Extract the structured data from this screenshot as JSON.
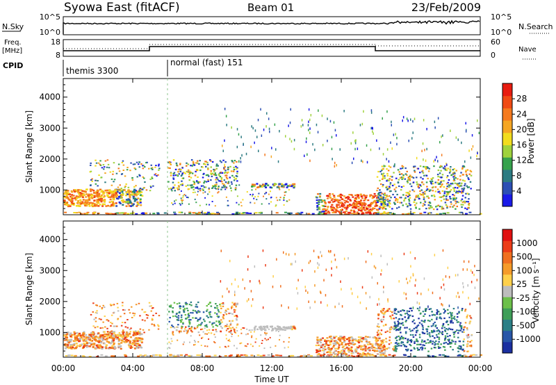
{
  "header": {
    "title": "Syowa East (fitACF)",
    "beam": "Beam 01",
    "date": "23/Feb/2009"
  },
  "sky_panel": {
    "left_label": "N.Sky",
    "right_label": "N.Search",
    "left_ticks": [
      "10^5",
      "10^0"
    ],
    "right_ticks": [
      "10^5",
      "10^0"
    ]
  },
  "freq_panel": {
    "left_label": "Freq.",
    "left_unit": "[MHz]",
    "right_label": "Nave",
    "left_ticks": [
      "18",
      "8"
    ],
    "right_ticks": [
      "60",
      "0"
    ]
  },
  "cpid": {
    "label": "CPID",
    "modes": [
      {
        "name": "themis 3300",
        "start_hour": 0
      },
      {
        "name": "normal (fast) 151",
        "start_hour": 6
      }
    ]
  },
  "chart_data": [
    {
      "type": "heatmap",
      "name": "power-panel",
      "ylabel": "Slant Range [km]",
      "ylim": [
        200,
        4600
      ],
      "yticks": [
        1000,
        2000,
        3000,
        4000
      ],
      "xlim": [
        0,
        24
      ],
      "colorbar_label": "Power [dB]",
      "colorbar_ticks": [
        "28",
        "24",
        "20",
        "16",
        "12",
        "8",
        "4"
      ],
      "colors": [
        "#1a1ae8",
        "#2c4fb4",
        "#2c7b82",
        "#36a24c",
        "#9fd23c",
        "#f2dc1e",
        "#f5a623",
        "#f57a1e",
        "#f04a14",
        "#e81c10"
      ]
    },
    {
      "type": "heatmap",
      "name": "velocity-panel",
      "ylabel": "Slant Range [km]",
      "ylim": [
        200,
        4600
      ],
      "yticks": [
        1000,
        2000,
        3000,
        4000
      ],
      "xlim": [
        0,
        24
      ],
      "colorbar_label": "Velocity [m s⁻¹]",
      "colorbar_ticks": [
        "1000",
        "500",
        "100",
        "25",
        "-25",
        "-100",
        "-500",
        "-1000"
      ],
      "colors": [
        "#1b2fa0",
        "#2856a8",
        "#2b7f86",
        "#3e9e58",
        "#6cc04a",
        "#bdbdbd",
        "#ffd04a",
        "#f59b2a",
        "#f07020",
        "#ec3c18",
        "#e01010"
      ]
    }
  ],
  "x_axis": {
    "ticks": [
      "00:00",
      "04:00",
      "08:00",
      "12:00",
      "16:00",
      "20:00",
      "00:00"
    ],
    "label": "Time UT"
  }
}
